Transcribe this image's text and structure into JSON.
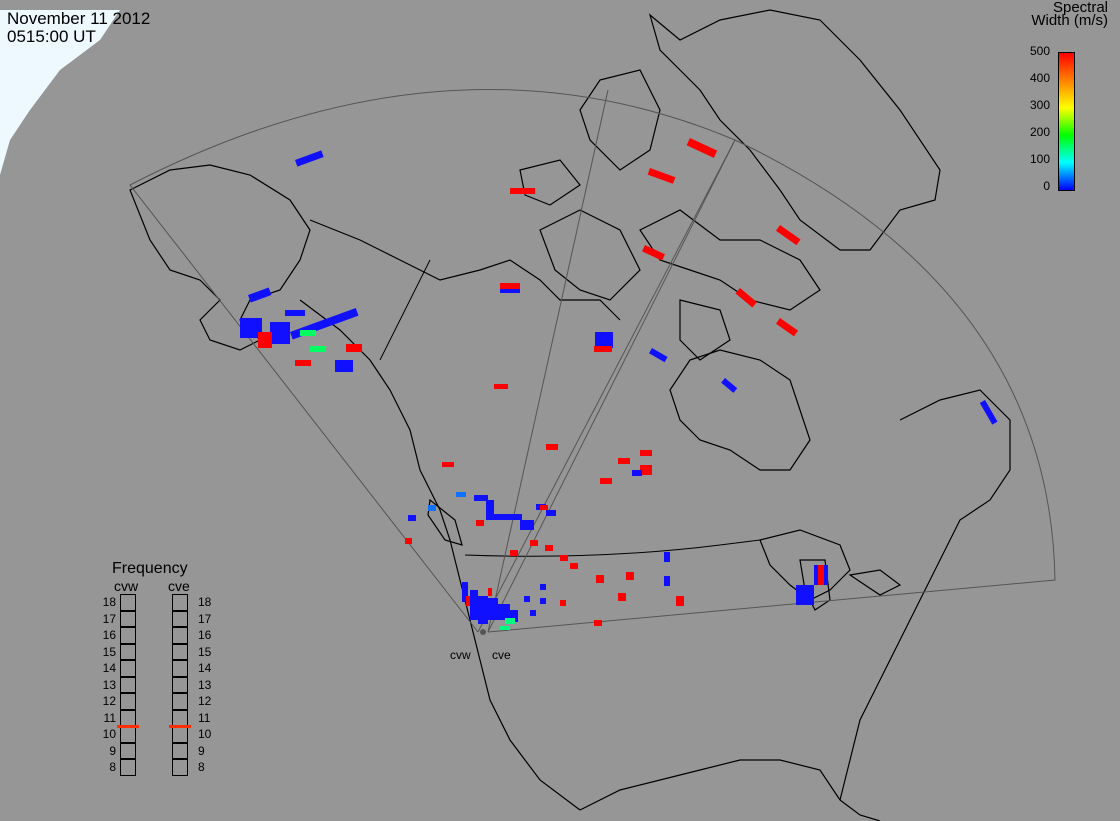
{
  "header": {
    "date": "November 11 2012",
    "time": "0515:00 UT"
  },
  "colorbar": {
    "title_line1": "Spectral",
    "title_line2": "Width (m/s)",
    "ticks": [
      "500",
      "400",
      "300",
      "200",
      "100",
      "0"
    ],
    "colors": [
      "#ff0000",
      "#ff8000",
      "#ffff00",
      "#00ff00",
      "#00ffff",
      "#0000ff"
    ]
  },
  "frequency": {
    "title": "Frequency",
    "radar_left": "cvw",
    "radar_right": "cve",
    "scale": [
      "18",
      "17",
      "16",
      "15",
      "14",
      "13",
      "12",
      "11",
      "10",
      "9",
      "8"
    ],
    "cvw_mhz": 10.5,
    "cve_mhz": 10.5,
    "marker_color": "#ff3000"
  },
  "radars": [
    {
      "name": "cvw"
    },
    {
      "name": "cve"
    }
  ]
}
